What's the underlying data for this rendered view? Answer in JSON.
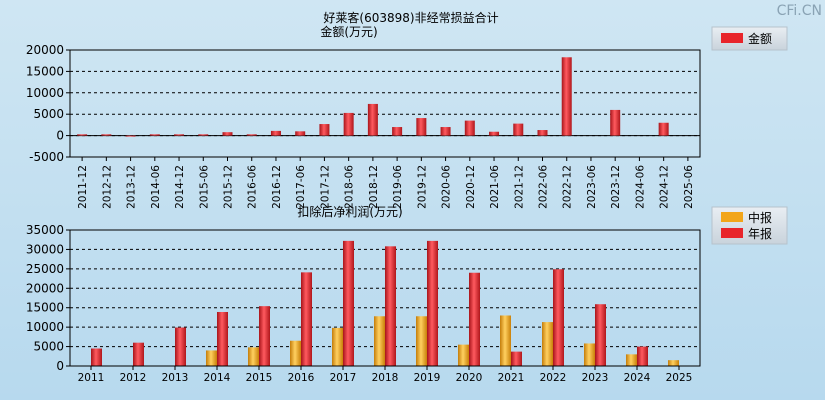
{
  "watermark": "CFi.CN",
  "chart_data": [
    {
      "type": "bar",
      "title": "好莱客(603898)非经常损益合计",
      "ylabel": "金额(万元)",
      "ylim": [
        -5000,
        20000
      ],
      "yticks": [
        20000,
        15000,
        10000,
        5000,
        0,
        -5000
      ],
      "grid": true,
      "legend_position": "top-right",
      "categories": [
        "2011-12",
        "2012-12",
        "2013-12",
        "2014-06",
        "2014-12",
        "2015-06",
        "2015-12",
        "2016-06",
        "2016-12",
        "2017-06",
        "2017-12",
        "2018-06",
        "2018-12",
        "2019-06",
        "2019-12",
        "2020-06",
        "2020-12",
        "2021-06",
        "2021-12",
        "2022-06",
        "2022-12",
        "2023-06",
        "2023-12",
        "2024-06",
        "2024-12",
        "2025-06"
      ],
      "series": [
        {
          "name": "金额",
          "color": "#e8242a",
          "values": [
            300,
            300,
            -200,
            300,
            300,
            300,
            800,
            300,
            1100,
            1000,
            2700,
            5300,
            7400,
            2000,
            4100,
            2000,
            3500,
            900,
            2800,
            1300,
            18300,
            0,
            6000,
            0,
            3000,
            0
          ]
        }
      ]
    },
    {
      "type": "bar",
      "title": "扣除后净利润(万元)",
      "ylim": [
        0,
        35000
      ],
      "yticks": [
        35000,
        30000,
        25000,
        20000,
        15000,
        10000,
        5000,
        0
      ],
      "grid": true,
      "legend_position": "top-right",
      "categories": [
        "2011",
        "2012",
        "2013",
        "2014",
        "2015",
        "2016",
        "2017",
        "2018",
        "2019",
        "2020",
        "2021",
        "2022",
        "2023",
        "2024",
        "2025"
      ],
      "series": [
        {
          "name": "中报",
          "color": "#f2a51a",
          "values": [
            null,
            null,
            null,
            4000,
            4800,
            6500,
            9800,
            12800,
            12800,
            5500,
            13000,
            11300,
            5800,
            3000,
            1500
          ]
        },
        {
          "name": "年报",
          "color": "#e8242a",
          "values": [
            4500,
            6000,
            9900,
            13900,
            15400,
            24100,
            32200,
            30800,
            32200,
            24000,
            3700,
            24900,
            15900,
            5000,
            null
          ]
        }
      ]
    }
  ]
}
